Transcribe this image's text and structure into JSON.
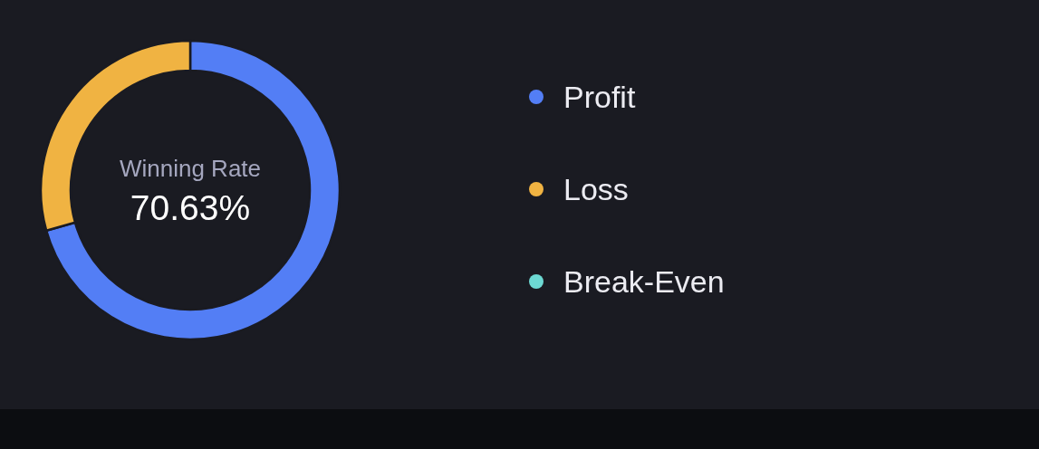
{
  "chart_data": {
    "type": "donut",
    "title": "Winning Rate",
    "annotations": [
      "70.63%"
    ],
    "categories": [
      "Profit",
      "Loss",
      "Break-Even"
    ],
    "values": [
      70.63,
      29.37,
      0
    ],
    "colors": [
      "#537ef5",
      "#f0b342",
      "#6dd9d3"
    ],
    "legend": "right"
  }
}
